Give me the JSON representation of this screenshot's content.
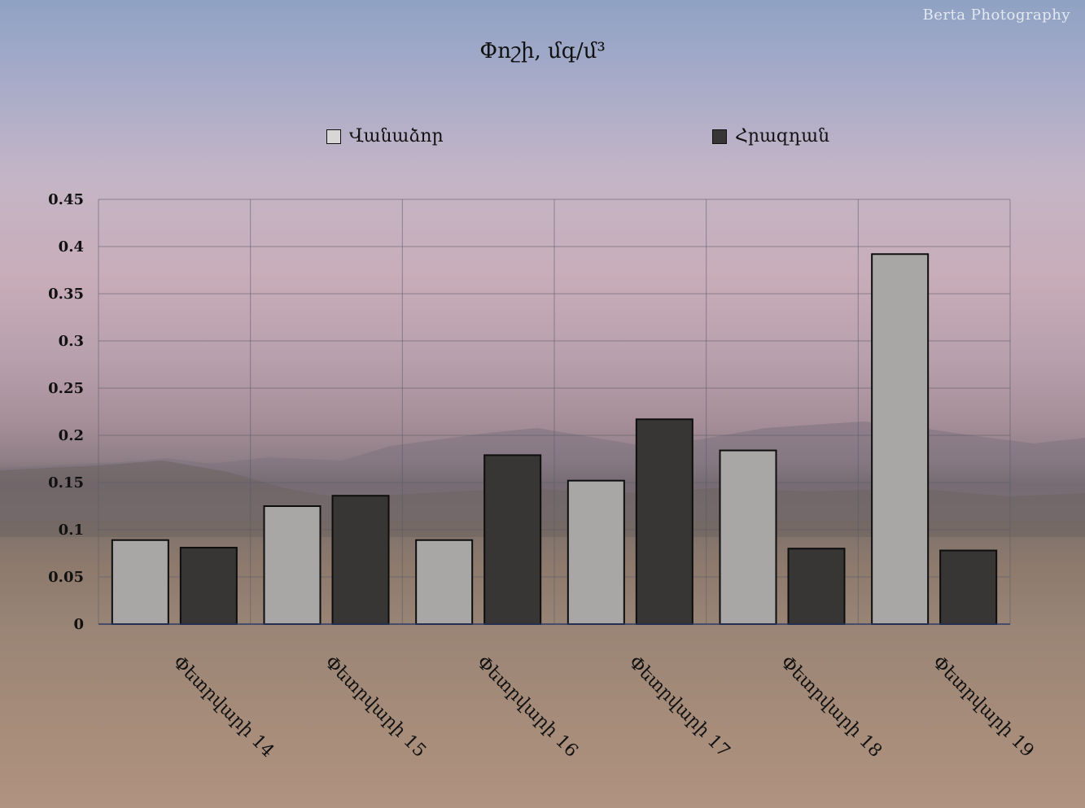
{
  "watermark": "Berta  Photography",
  "chart_data": {
    "type": "bar",
    "title": "Փոշի, մգ/մ³",
    "xlabel": "",
    "ylabel": "",
    "categories": [
      "Փետրվարի 14",
      "Փետրվարի 15",
      "Փետրվարի 16",
      "Փետրվարի 17",
      "Փետրվարի 18",
      "Փետրվարի 19"
    ],
    "series": [
      {
        "name": "Վանաձոր",
        "color": "#a9a7a6",
        "values": [
          0.089,
          0.125,
          0.089,
          0.152,
          0.184,
          0.392
        ]
      },
      {
        "name": "Հրազդան",
        "color": "#383634",
        "values": [
          0.081,
          0.136,
          0.179,
          0.217,
          0.08,
          0.078
        ]
      }
    ],
    "ylim": [
      0,
      0.45
    ],
    "yticks": [
      "0",
      "0.05",
      "0.1",
      "0.15",
      "0.2",
      "0.25",
      "0.3",
      "0.35",
      "0.4",
      "0.45"
    ],
    "grid": true,
    "legend_position": "top"
  }
}
